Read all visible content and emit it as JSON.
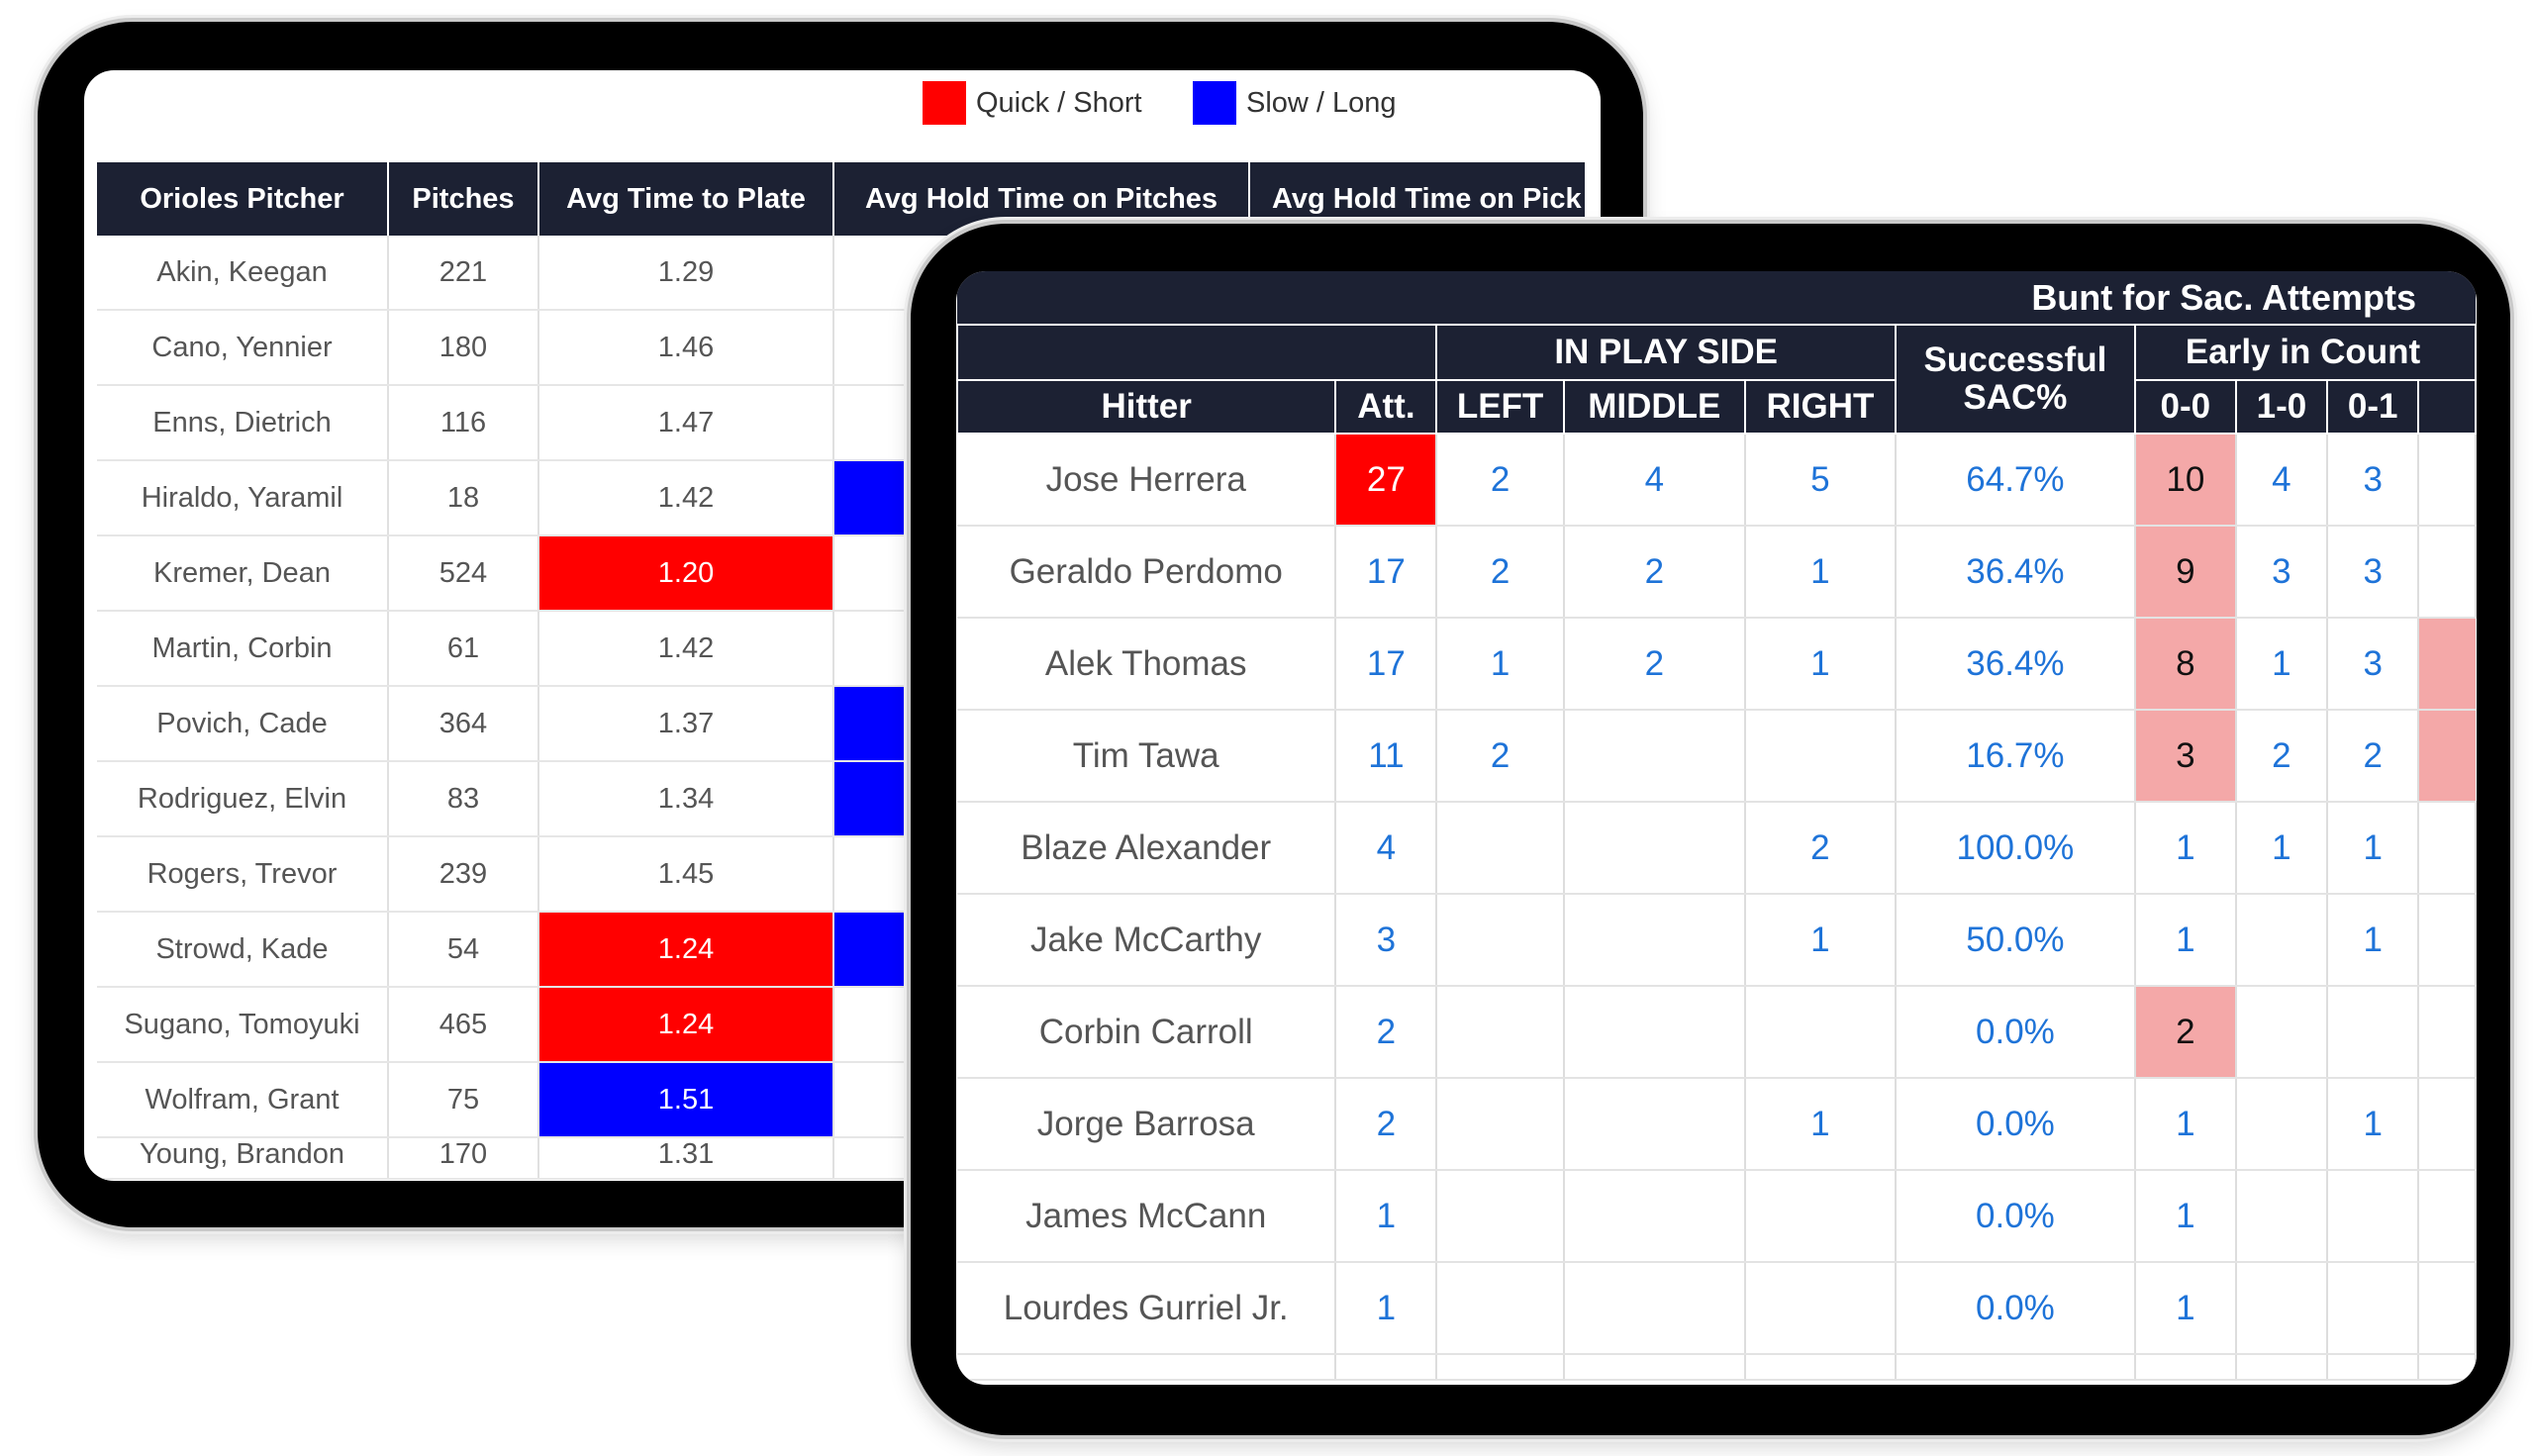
{
  "pitcher_table": {
    "legend": [
      {
        "label": "Quick / Short",
        "color": "#ff0000"
      },
      {
        "label": "Slow / Long",
        "color": "#0000ff"
      }
    ],
    "headers": [
      "Orioles Pitcher",
      "Pitches",
      "Avg Time to Plate",
      "Avg Hold Time on Pitches",
      "Avg Hold Time on Pick"
    ],
    "rows": [
      {
        "name": "Akin, Keegan",
        "pitches": "221",
        "time": "1.29",
        "time_flag": "",
        "hold_flag": ""
      },
      {
        "name": "Cano, Yennier",
        "pitches": "180",
        "time": "1.46",
        "time_flag": "",
        "hold_flag": ""
      },
      {
        "name": "Enns, Dietrich",
        "pitches": "116",
        "time": "1.47",
        "time_flag": "",
        "hold_flag": ""
      },
      {
        "name": "Hiraldo, Yaramil",
        "pitches": "18",
        "time": "1.42",
        "time_flag": "",
        "hold_flag": "slow"
      },
      {
        "name": "Kremer, Dean",
        "pitches": "524",
        "time": "1.20",
        "time_flag": "quick",
        "hold_flag": ""
      },
      {
        "name": "Martin, Corbin",
        "pitches": "61",
        "time": "1.42",
        "time_flag": "",
        "hold_flag": ""
      },
      {
        "name": "Povich, Cade",
        "pitches": "364",
        "time": "1.37",
        "time_flag": "",
        "hold_flag": "slow"
      },
      {
        "name": "Rodriguez, Elvin",
        "pitches": "83",
        "time": "1.34",
        "time_flag": "",
        "hold_flag": "slow"
      },
      {
        "name": "Rogers, Trevor",
        "pitches": "239",
        "time": "1.45",
        "time_flag": "",
        "hold_flag": ""
      },
      {
        "name": "Strowd, Kade",
        "pitches": "54",
        "time": "1.24",
        "time_flag": "quick",
        "hold_flag": "slow"
      },
      {
        "name": "Sugano, Tomoyuki",
        "pitches": "465",
        "time": "1.24",
        "time_flag": "quick",
        "hold_flag": ""
      },
      {
        "name": "Wolfram, Grant",
        "pitches": "75",
        "time": "1.51",
        "time_flag": "slow",
        "hold_flag": ""
      },
      {
        "name": "Young, Brandon",
        "pitches": "170",
        "time": "1.31",
        "time_flag": "",
        "hold_flag": ""
      }
    ]
  },
  "bunt_table": {
    "title": "Bunt for Sac. Attempts",
    "group_headers": {
      "in_play_side": "IN PLAY SIDE",
      "successful_sac": "Successful SAC%",
      "early_in_count": "Early in Count"
    },
    "columns": [
      "Hitter",
      "Att.",
      "LEFT",
      "MIDDLE",
      "RIGHT",
      "0-0",
      "1-0",
      "0-1"
    ],
    "highlight_colors": {
      "att_high": "#ff0000",
      "count_high": "#f4a8a8"
    },
    "rows": [
      {
        "hitter": "Jose Herrera",
        "att": "27",
        "left": "2",
        "middle": "4",
        "right": "5",
        "sac": "64.7%",
        "c00": "10",
        "c10": "4",
        "c01": "3",
        "att_hi": true,
        "c00_hi": true,
        "next_hi": false
      },
      {
        "hitter": "Geraldo Perdomo",
        "att": "17",
        "left": "2",
        "middle": "2",
        "right": "1",
        "sac": "36.4%",
        "c00": "9",
        "c10": "3",
        "c01": "3",
        "att_hi": false,
        "c00_hi": true,
        "next_hi": false
      },
      {
        "hitter": "Alek Thomas",
        "att": "17",
        "left": "1",
        "middle": "2",
        "right": "1",
        "sac": "36.4%",
        "c00": "8",
        "c10": "1",
        "c01": "3",
        "att_hi": false,
        "c00_hi": true,
        "next_hi": true
      },
      {
        "hitter": "Tim Tawa",
        "att": "11",
        "left": "2",
        "middle": "",
        "right": "",
        "sac": "16.7%",
        "c00": "3",
        "c10": "2",
        "c01": "2",
        "att_hi": false,
        "c00_hi": true,
        "next_hi": true
      },
      {
        "hitter": "Blaze Alexander",
        "att": "4",
        "left": "",
        "middle": "",
        "right": "2",
        "sac": "100.0%",
        "c00": "1",
        "c10": "1",
        "c01": "1",
        "att_hi": false,
        "c00_hi": false,
        "next_hi": false
      },
      {
        "hitter": "Jake McCarthy",
        "att": "3",
        "left": "",
        "middle": "",
        "right": "1",
        "sac": "50.0%",
        "c00": "1",
        "c10": "",
        "c01": "1",
        "att_hi": false,
        "c00_hi": false,
        "next_hi": false
      },
      {
        "hitter": "Corbin Carroll",
        "att": "2",
        "left": "",
        "middle": "",
        "right": "",
        "sac": "0.0%",
        "c00": "2",
        "c10": "",
        "c01": "",
        "att_hi": false,
        "c00_hi": true,
        "next_hi": false
      },
      {
        "hitter": "Jorge Barrosa",
        "att": "2",
        "left": "",
        "middle": "",
        "right": "1",
        "sac": "0.0%",
        "c00": "1",
        "c10": "",
        "c01": "1",
        "att_hi": false,
        "c00_hi": false,
        "next_hi": false
      },
      {
        "hitter": "James McCann",
        "att": "1",
        "left": "",
        "middle": "",
        "right": "",
        "sac": "0.0%",
        "c00": "1",
        "c10": "",
        "c01": "",
        "att_hi": false,
        "c00_hi": false,
        "next_hi": false
      },
      {
        "hitter": "Lourdes Gurriel Jr.",
        "att": "1",
        "left": "",
        "middle": "",
        "right": "",
        "sac": "0.0%",
        "c00": "1",
        "c10": "",
        "c01": "",
        "att_hi": false,
        "c00_hi": false,
        "next_hi": false
      }
    ]
  }
}
